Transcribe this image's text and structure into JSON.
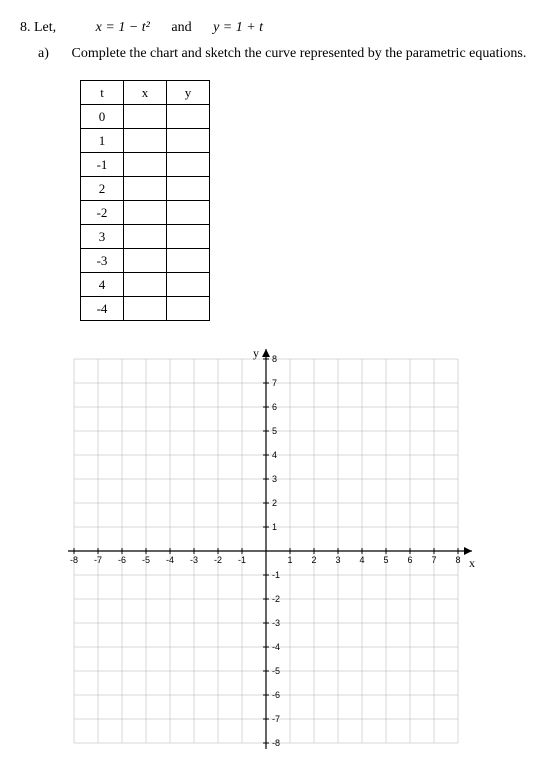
{
  "problem": {
    "number": "8.",
    "lead": "Let,",
    "eq1": "x = 1 − t²",
    "and": "and",
    "eq2": "y = 1 + t"
  },
  "subpart": {
    "letter": "a)",
    "text": "Complete the chart and sketch the curve represented by the parametric equations."
  },
  "table": {
    "headers": [
      "t",
      "x",
      "y"
    ],
    "t_values": [
      "0",
      "1",
      "-1",
      "2",
      "-2",
      "3",
      "-3",
      "4",
      "-4"
    ]
  },
  "graph": {
    "xmin": -8,
    "xmax": 8,
    "ymin": -8,
    "ymax": 8,
    "cell": 24,
    "x_label": "x",
    "y_label": "y",
    "tick_labels_x": [
      "-8",
      "-7",
      "-6",
      "-5",
      "-4",
      "-3",
      "-2",
      "-1",
      "",
      "1",
      "2",
      "3",
      "4",
      "5",
      "6",
      "7",
      "8"
    ],
    "tick_labels_y": [
      "-8",
      "-7",
      "-6",
      "-5",
      "-4",
      "-3",
      "-2",
      "-1",
      "",
      "1",
      "2",
      "3",
      "4",
      "5",
      "6",
      "7",
      "8"
    ]
  }
}
